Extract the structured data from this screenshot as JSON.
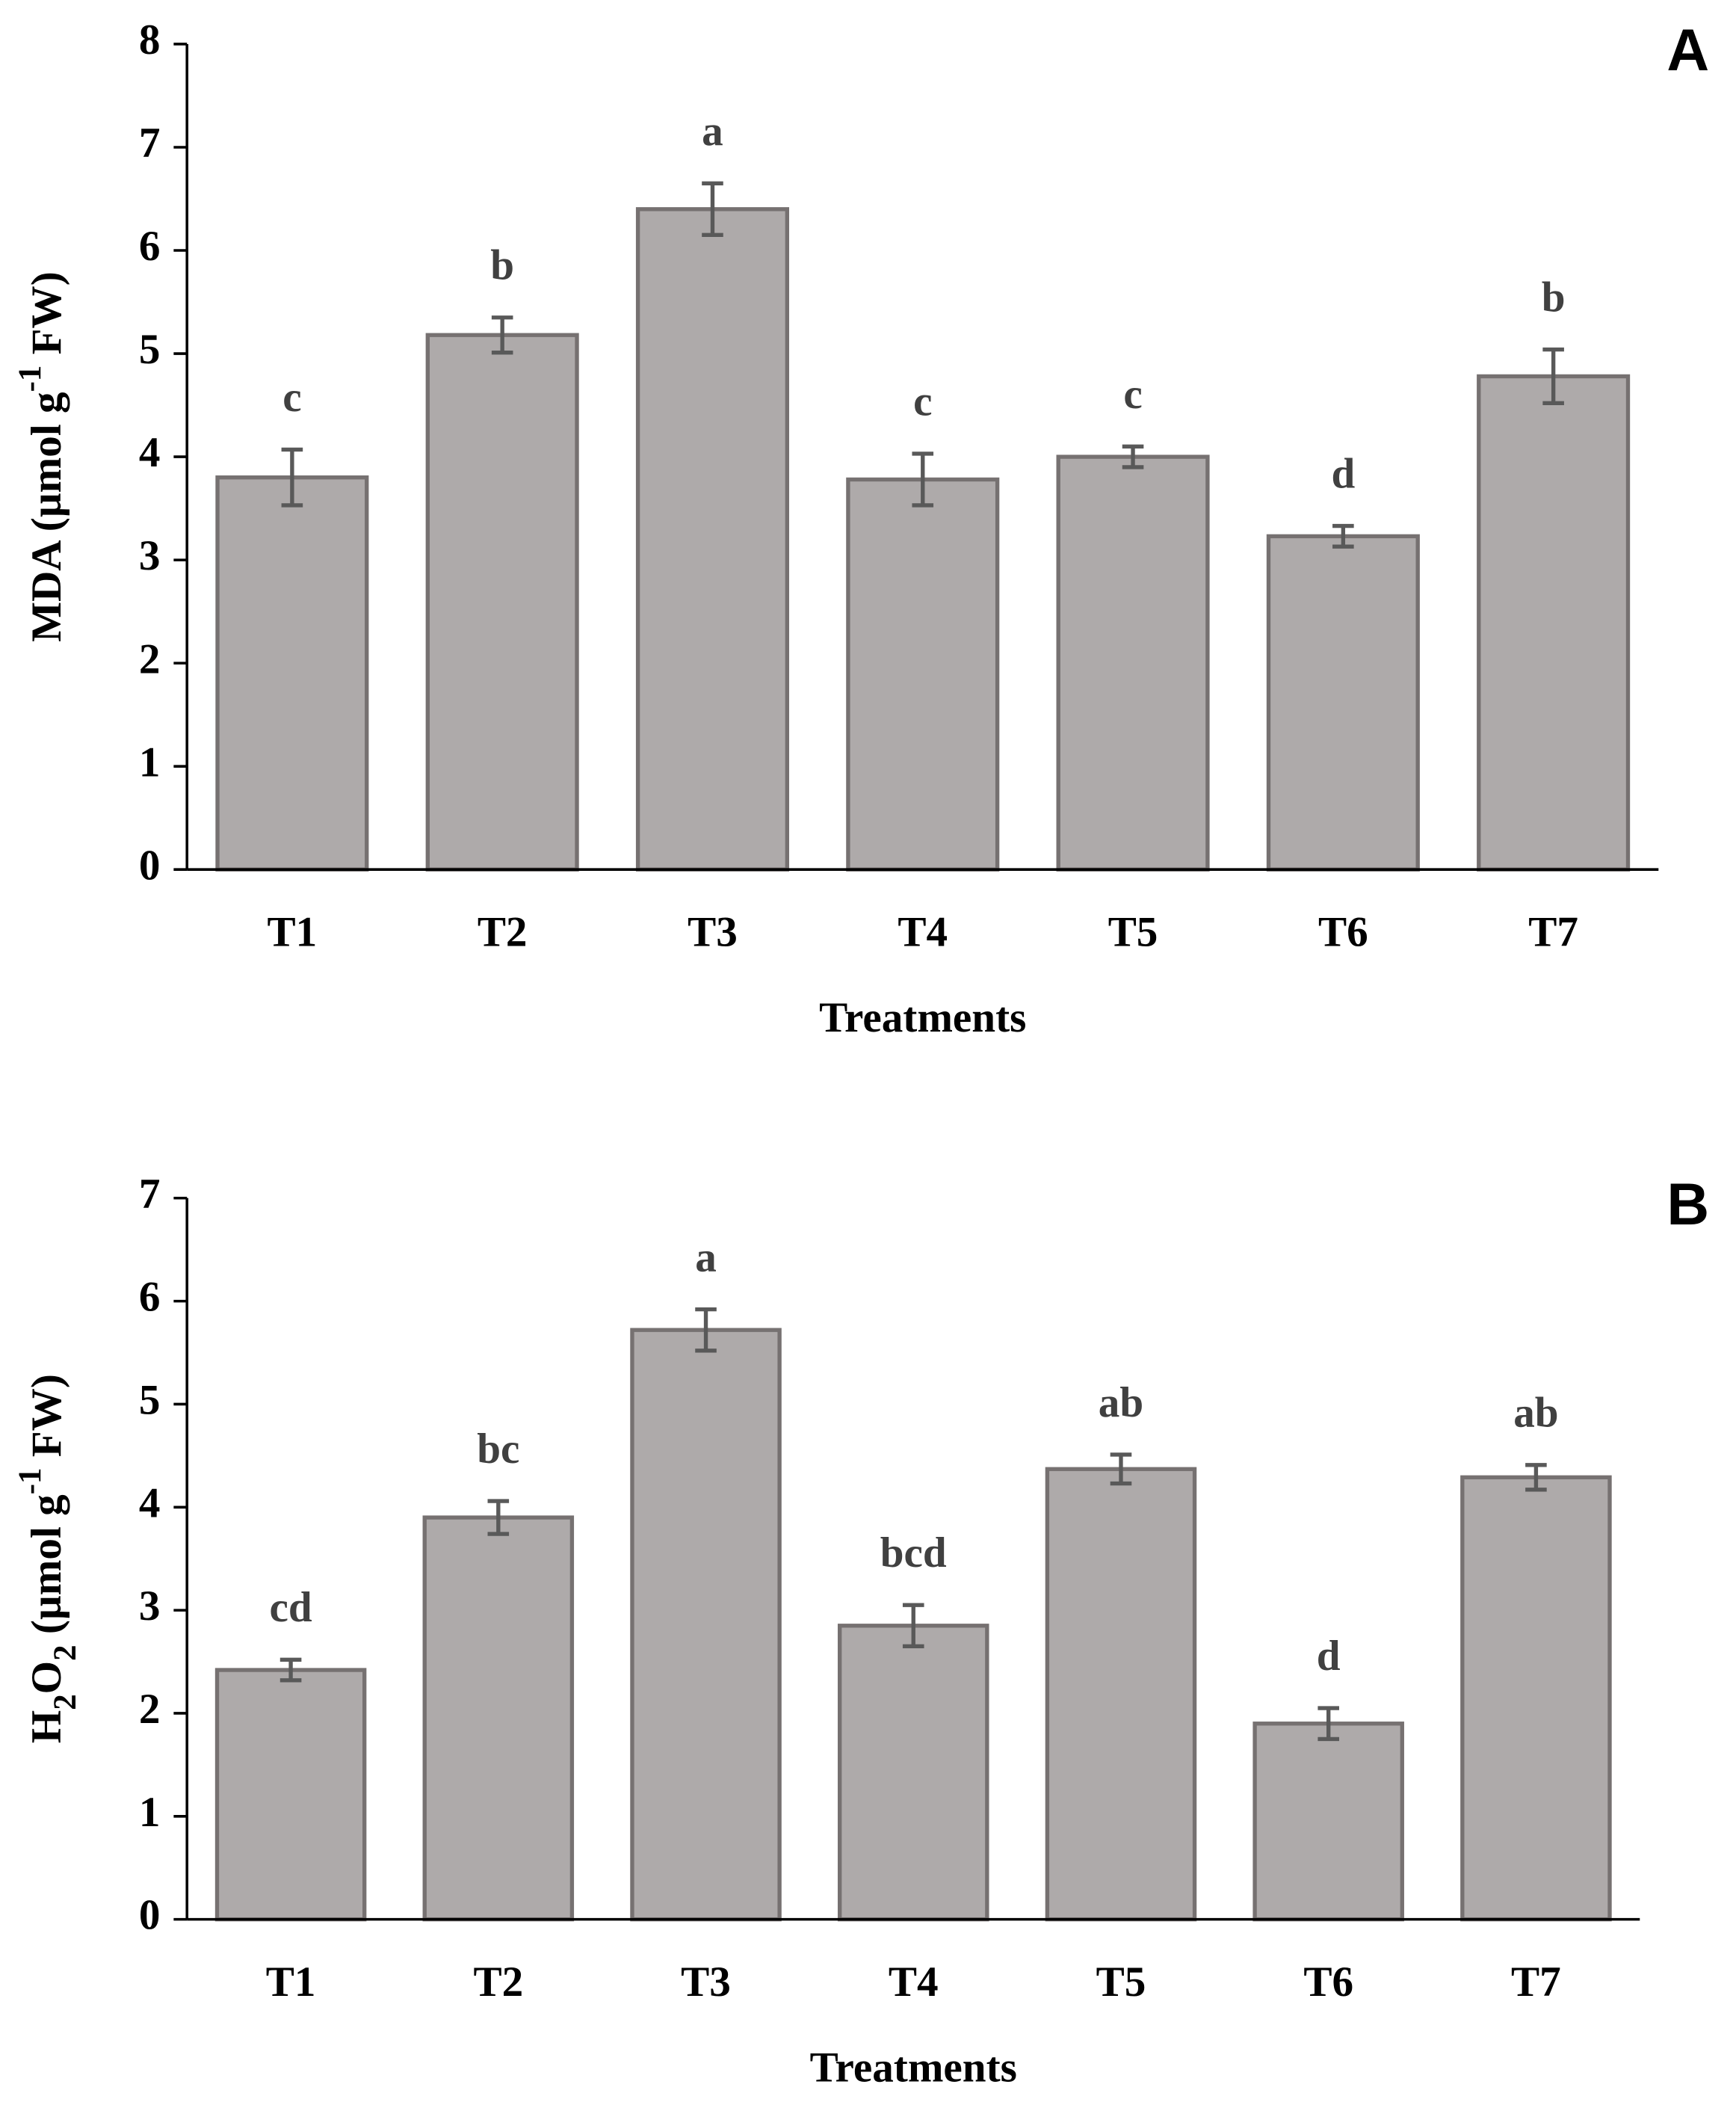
{
  "chart_data": [
    {
      "type": "bar",
      "panel": "A",
      "ylabel_parts": [
        {
          "text": "MDA (µmol g"
        },
        {
          "text": "-1",
          "shift": "super"
        },
        {
          "text": " FW)"
        }
      ],
      "xlabel": "Treatments",
      "categories": [
        "T1",
        "T2",
        "T3",
        "T4",
        "T5",
        "T6",
        "T7"
      ],
      "values": [
        3.8,
        5.18,
        6.4,
        3.78,
        4.0,
        3.23,
        4.78
      ],
      "errors": [
        0.27,
        0.17,
        0.25,
        0.25,
        0.1,
        0.1,
        0.26
      ],
      "annotations": [
        "c",
        "b",
        "a",
        "c",
        "c",
        "d",
        "b"
      ],
      "color": "#aeaaaa",
      "edge_color": "#767171",
      "ylim": [
        0,
        8
      ],
      "yticks": [
        0,
        1,
        2,
        3,
        4,
        5,
        6,
        7,
        8
      ]
    },
    {
      "type": "bar",
      "panel": "B",
      "ylabel_parts": [
        {
          "text": "H"
        },
        {
          "text": "2",
          "shift": "sub"
        },
        {
          "text": "O"
        },
        {
          "text": "2",
          "shift": "sub"
        },
        {
          "text": " (µmol g"
        },
        {
          "text": "-1",
          "shift": "super"
        },
        {
          "text": " FW)"
        }
      ],
      "xlabel": "Treatments",
      "categories": [
        "T1",
        "T2",
        "T3",
        "T4",
        "T5",
        "T6",
        "T7"
      ],
      "values": [
        2.42,
        3.9,
        5.72,
        2.85,
        4.37,
        1.9,
        4.29
      ],
      "errors": [
        0.1,
        0.16,
        0.2,
        0.2,
        0.14,
        0.15,
        0.12
      ],
      "annotations": [
        "cd",
        "bc",
        "a",
        "bcd",
        "ab",
        "d",
        "ab"
      ],
      "color": "#aeaaaa",
      "edge_color": "#767171",
      "ylim": [
        0,
        7
      ],
      "yticks": [
        0,
        1,
        2,
        3,
        4,
        5,
        6,
        7
      ]
    }
  ]
}
